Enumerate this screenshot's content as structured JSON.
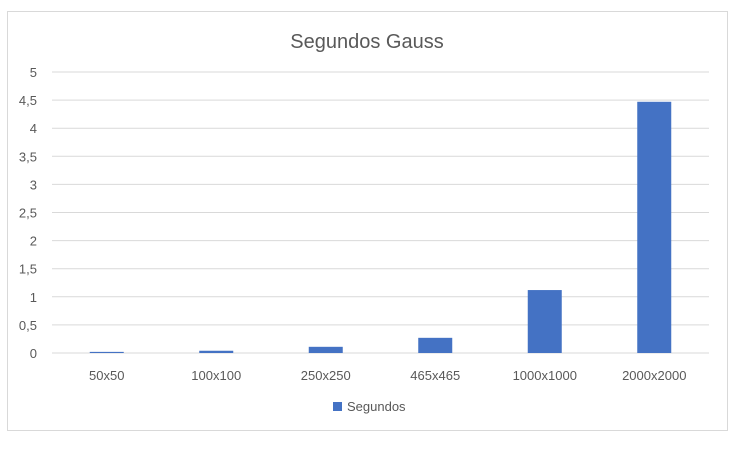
{
  "chart_data": {
    "type": "bar",
    "title": "Segundos Gauss",
    "categories": [
      "50x50",
      "100x100",
      "250x250",
      "465x465",
      "1000x1000",
      "2000x2000"
    ],
    "series": [
      {
        "name": "Segundos",
        "values": [
          0.02,
          0.04,
          0.11,
          0.27,
          1.12,
          4.47
        ],
        "color": "#4472c4"
      }
    ],
    "ylim": [
      0,
      5
    ],
    "yticks": [
      "0",
      "0,5",
      "1",
      "1,5",
      "2",
      "2,5",
      "3",
      "3,5",
      "4",
      "4,5",
      "5"
    ],
    "grid": true,
    "legend_position": "bottom",
    "frame_color": "#d9d9d9"
  }
}
